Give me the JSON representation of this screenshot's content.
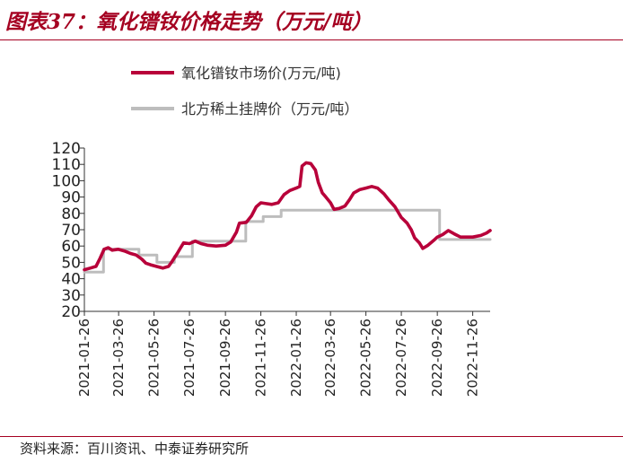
{
  "header": {
    "title": "图表37：氧化镨钕价格走势（万元/吨）"
  },
  "footer": {
    "source": "资料来源：百川资讯、中泰证券研究所"
  },
  "colors": {
    "accent": "#a50021",
    "series_market": "#b8003a",
    "series_north": "#bdbdbd"
  },
  "chart_data": {
    "type": "line",
    "title": "",
    "xlabel": "",
    "ylabel": "",
    "ylim": [
      20,
      120
    ],
    "yticks": [
      20,
      30,
      40,
      50,
      60,
      70,
      80,
      90,
      100,
      110,
      120
    ],
    "xlim": [
      "2021-01-26",
      "2022-12-26"
    ],
    "xticks": [
      "2021-01-26",
      "2021-03-26",
      "2021-05-26",
      "2021-07-26",
      "2021-09-26",
      "2021-11-26",
      "2022-01-26",
      "2022-03-26",
      "2022-05-26",
      "2022-07-26",
      "2022-09-26",
      "2022-11-26"
    ],
    "grid": false,
    "legend_position": "top",
    "series": [
      {
        "name": "氧化镨钕市场价(万元/吨)",
        "color": "#b8003a",
        "points": [
          [
            "2021-01-26",
            45.5
          ],
          [
            "2021-02-05",
            46.5
          ],
          [
            "2021-02-15",
            47.5
          ],
          [
            "2021-02-22",
            52.5
          ],
          [
            "2021-03-01",
            58.0
          ],
          [
            "2021-03-08",
            59.0
          ],
          [
            "2021-03-15",
            57.5
          ],
          [
            "2021-03-25",
            58.0
          ],
          [
            "2021-04-05",
            57.0
          ],
          [
            "2021-04-15",
            55.5
          ],
          [
            "2021-04-25",
            54.5
          ],
          [
            "2021-05-05",
            52.0
          ],
          [
            "2021-05-12",
            49.5
          ],
          [
            "2021-05-20",
            48.5
          ],
          [
            "2021-05-30",
            47.5
          ],
          [
            "2021-06-10",
            46.5
          ],
          [
            "2021-06-20",
            47.5
          ],
          [
            "2021-06-26",
            50.5
          ],
          [
            "2021-07-05",
            55.5
          ],
          [
            "2021-07-10",
            58.5
          ],
          [
            "2021-07-16",
            62.0
          ],
          [
            "2021-07-26",
            61.5
          ],
          [
            "2021-08-05",
            63.0
          ],
          [
            "2021-08-15",
            61.5
          ],
          [
            "2021-08-26",
            60.5
          ],
          [
            "2021-09-10",
            60.0
          ],
          [
            "2021-09-26",
            60.5
          ],
          [
            "2021-10-05",
            62.5
          ],
          [
            "2021-10-15",
            68.5
          ],
          [
            "2021-10-20",
            74.0
          ],
          [
            "2021-11-01",
            74.5
          ],
          [
            "2021-11-10",
            78.5
          ],
          [
            "2021-11-18",
            84.0
          ],
          [
            "2021-11-26",
            86.5
          ],
          [
            "2021-12-05",
            86.0
          ],
          [
            "2021-12-15",
            85.5
          ],
          [
            "2021-12-26",
            86.5
          ],
          [
            "2022-01-05",
            91.5
          ],
          [
            "2022-01-15",
            94.0
          ],
          [
            "2022-01-26",
            95.5
          ],
          [
            "2022-02-01",
            96.5
          ],
          [
            "2022-02-05",
            109.0
          ],
          [
            "2022-02-12",
            111.0
          ],
          [
            "2022-02-20",
            110.5
          ],
          [
            "2022-02-28",
            106.5
          ],
          [
            "2022-03-05",
            99.0
          ],
          [
            "2022-03-12",
            92.5
          ],
          [
            "2022-03-18",
            90.0
          ],
          [
            "2022-03-26",
            86.5
          ],
          [
            "2022-04-01",
            82.5
          ],
          [
            "2022-04-10",
            83.0
          ],
          [
            "2022-04-20",
            84.5
          ],
          [
            "2022-04-28",
            88.5
          ],
          [
            "2022-05-05",
            92.5
          ],
          [
            "2022-05-15",
            94.5
          ],
          [
            "2022-05-26",
            95.5
          ],
          [
            "2022-06-05",
            96.5
          ],
          [
            "2022-06-15",
            95.5
          ],
          [
            "2022-06-26",
            92.0
          ],
          [
            "2022-07-05",
            88.0
          ],
          [
            "2022-07-15",
            84.0
          ],
          [
            "2022-07-26",
            77.5
          ],
          [
            "2022-08-05",
            74.0
          ],
          [
            "2022-08-12",
            70.0
          ],
          [
            "2022-08-18",
            65.0
          ],
          [
            "2022-08-26",
            62.0
          ],
          [
            "2022-09-01",
            58.5
          ],
          [
            "2022-09-10",
            60.5
          ],
          [
            "2022-09-20",
            63.5
          ],
          [
            "2022-09-26",
            65.5
          ],
          [
            "2022-10-05",
            67.0
          ],
          [
            "2022-10-15",
            69.5
          ],
          [
            "2022-10-25",
            67.5
          ],
          [
            "2022-11-05",
            65.5
          ],
          [
            "2022-11-26",
            65.5
          ],
          [
            "2022-12-10",
            66.5
          ],
          [
            "2022-12-20",
            68.0
          ],
          [
            "2022-12-26",
            69.5
          ]
        ]
      },
      {
        "name": "北方稀土挂牌价（万元/吨）",
        "color": "#bdbdbd",
        "points": [
          [
            "2021-01-26",
            44.0
          ],
          [
            "2021-02-28",
            44.0
          ],
          [
            "2021-02-28",
            58.0
          ],
          [
            "2021-04-30",
            58.0
          ],
          [
            "2021-04-30",
            54.5
          ],
          [
            "2021-05-31",
            54.5
          ],
          [
            "2021-05-31",
            50.0
          ],
          [
            "2021-06-30",
            50.0
          ],
          [
            "2021-06-30",
            53.5
          ],
          [
            "2021-07-31",
            53.5
          ],
          [
            "2021-07-31",
            63.0
          ],
          [
            "2021-10-31",
            63.0
          ],
          [
            "2021-10-31",
            75.0
          ],
          [
            "2021-11-30",
            75.0
          ],
          [
            "2021-11-30",
            78.0
          ],
          [
            "2021-12-31",
            78.0
          ],
          [
            "2021-12-31",
            82.0
          ],
          [
            "2022-09-30",
            82.0
          ],
          [
            "2022-09-30",
            64.0
          ],
          [
            "2022-12-26",
            64.0
          ]
        ]
      }
    ]
  }
}
